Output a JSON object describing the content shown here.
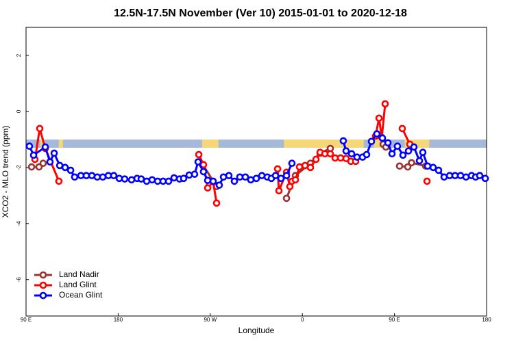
{
  "chart_data": {
    "type": "line",
    "title": "12.5N-17.5N November (Ver 10)   2015-01-01 to 2020-12-18",
    "x_label": "Longitude",
    "y_label": "XCO2 - MLO trend (ppm)",
    "xlim": [
      90,
      540
    ],
    "xticks": [
      {
        "value": 90,
        "label": "90 E"
      },
      {
        "value": 180,
        "label": "180"
      },
      {
        "value": 270,
        "label": "90 W"
      },
      {
        "value": 360,
        "label": "0"
      },
      {
        "value": 450,
        "label": "90 E"
      },
      {
        "value": 540,
        "label": "180"
      }
    ],
    "ylim": [
      -7.3,
      3
    ],
    "yticks": [
      -6,
      -4,
      -2,
      0,
      2
    ],
    "legend": "bottom-left",
    "ocean_color": "#a6b9d9",
    "land_color": "#f5d77a",
    "land_segments": [
      [
        104,
        108
      ],
      [
        122,
        126
      ],
      [
        262,
        278
      ],
      [
        342,
        420
      ],
      [
        430,
        444
      ],
      [
        460,
        484
      ]
    ],
    "series": [
      {
        "name": "Land Nadir",
        "color": "#993333",
        "x": [
          95.4,
          102.7,
          106.7,
          null,
          262.8,
          276.2,
          null,
          344.5,
          353.2,
          367.9,
          377.3,
          387.3,
          null,
          438.9,
          441.6,
          null,
          455,
          463,
          466.7,
          480.5
        ],
        "values": [
          -1.98,
          -1.98,
          -1.85,
          null,
          -1.9,
          -2.68,
          null,
          -3.1,
          -2.29,
          -1.85,
          -1.49,
          -1.32,
          null,
          -1.17,
          -1.27,
          null,
          -1.95,
          -1.98,
          -1.83,
          -1.95
        ]
      },
      {
        "name": "Land Glint",
        "color": "#ff0000",
        "x": [
          98.7,
          103.4,
          108.8,
          122.1,
          null,
          258.8,
          263.4,
          267.5,
          272.8,
          276.2,
          null,
          335.8,
          337.1,
          344.5,
          347.8,
          349.8,
          353.2,
          357.2,
          362.6,
          367.9,
          373.3,
          377.3,
          382,
          387.3,
          392,
          397.4,
          402.7,
          407.4,
          412.1,
          null,
          431.5,
          434.9,
          437.6,
          440.9,
          null,
          457.6,
          465,
          null,
          481.8
        ],
        "values": [
          -1.71,
          -0.61,
          -1.32,
          -2.49,
          null,
          -1.54,
          -1.9,
          -2.73,
          -2.51,
          -3.27,
          null,
          -2.05,
          -2.83,
          -2.17,
          -2.68,
          -2.49,
          -2.44,
          -1.98,
          -1.93,
          -2.0,
          -1.71,
          -1.46,
          -1.51,
          -1.51,
          -1.66,
          -1.66,
          -1.68,
          -1.78,
          -1.78,
          null,
          -0.88,
          -0.24,
          -0.93,
          0.27,
          null,
          -0.61,
          -1.17,
          null,
          -2.49
        ]
      },
      {
        "name": "Ocean Glint",
        "color": "#0000ff",
        "x": [
          93.3,
          97.4,
          108.8,
          113.4,
          117.5,
          122.9,
          128.2,
          133.6,
          137.5,
          143.6,
          148.9,
          154.3,
          159.6,
          165,
          170.4,
          175.7,
          181.1,
          186.4,
          193.1,
          198.5,
          202.5,
          207.9,
          213.2,
          218.6,
          223.9,
          229.3,
          234.6,
          240,
          244,
          249.4,
          254.7,
          258.1,
          263.4,
          267.5,
          272.8,
          278.8,
          282.9,
          288.2,
          293.6,
          298.9,
          304.3,
          309.6,
          315,
          320.4,
          325.7,
          329.7,
          333.8,
          339.1,
          344.5,
          349.8,
          null,
          400,
          402.7,
          408.1,
          413.4,
          418.8,
          422.8,
          427.5,
          432.8,
          438.2,
          443.6,
          447.6,
          452.9,
          458.3,
          463.7,
          469,
          474.4,
          477.7,
          482.4,
          487.8,
          493.1,
          498.5,
          503.9,
          509.2,
          514.6,
          519.9,
          525.3,
          529.3,
          533.3,
          538.7
        ],
        "values": [
          -1.24,
          -1.56,
          -1.27,
          -1.8,
          -1.49,
          -1.93,
          -2.0,
          -2.1,
          -2.34,
          -2.29,
          -2.29,
          -2.29,
          -2.34,
          -2.34,
          -2.29,
          -2.29,
          -2.39,
          -2.41,
          -2.44,
          -2.39,
          -2.41,
          -2.49,
          -2.44,
          -2.49,
          -2.49,
          -2.49,
          -2.37,
          -2.41,
          -2.39,
          -2.27,
          -2.24,
          -1.8,
          -2.15,
          -2.46,
          -2.49,
          -2.63,
          -2.34,
          -2.29,
          -2.49,
          -2.34,
          -2.34,
          -2.44,
          -2.39,
          -2.29,
          -2.34,
          -2.39,
          -2.29,
          -2.39,
          -2.29,
          -1.85,
          null,
          -1.05,
          -1.41,
          -1.51,
          -1.63,
          -1.63,
          -1.54,
          -1.07,
          -0.8,
          -0.95,
          -1.12,
          -1.51,
          -1.24,
          -1.56,
          -1.41,
          -1.27,
          -1.76,
          -1.46,
          -1.95,
          -2.0,
          -2.1,
          -2.34,
          -2.29,
          -2.29,
          -2.29,
          -2.34,
          -2.29,
          -2.34,
          -2.29,
          -2.39
        ]
      }
    ]
  }
}
